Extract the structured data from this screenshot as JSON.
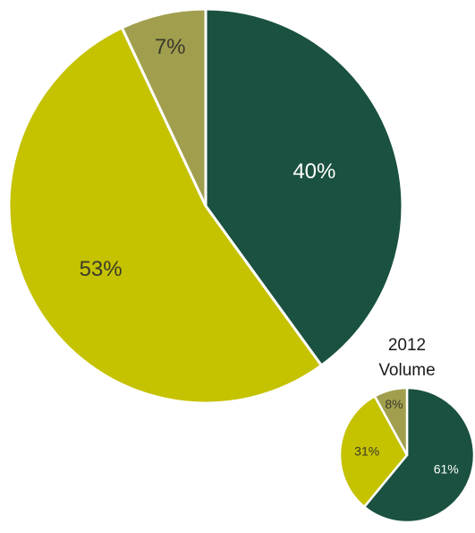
{
  "chart_data": [
    {
      "type": "pie",
      "title": "",
      "values": [
        40,
        53,
        7
      ],
      "labels": [
        "40%",
        "53%",
        "7%"
      ],
      "colors": [
        "#1a5140",
        "#c5c200",
        "#a19f4e"
      ],
      "label_colors": [
        "#ffffff",
        "#3a3a2a",
        "#3a3a2a"
      ],
      "start": "12 o'clock",
      "direction": "clockwise"
    },
    {
      "type": "pie",
      "title": "2012 Volume",
      "values": [
        61,
        31,
        8
      ],
      "labels": [
        "61%",
        "31%",
        "8%"
      ],
      "colors": [
        "#1a5140",
        "#c5c200",
        "#a19f4e"
      ],
      "label_colors": [
        "#ffffff",
        "#3a3a2a",
        "#3a3a2a"
      ],
      "start": "12 o'clock",
      "direction": "clockwise"
    }
  ]
}
